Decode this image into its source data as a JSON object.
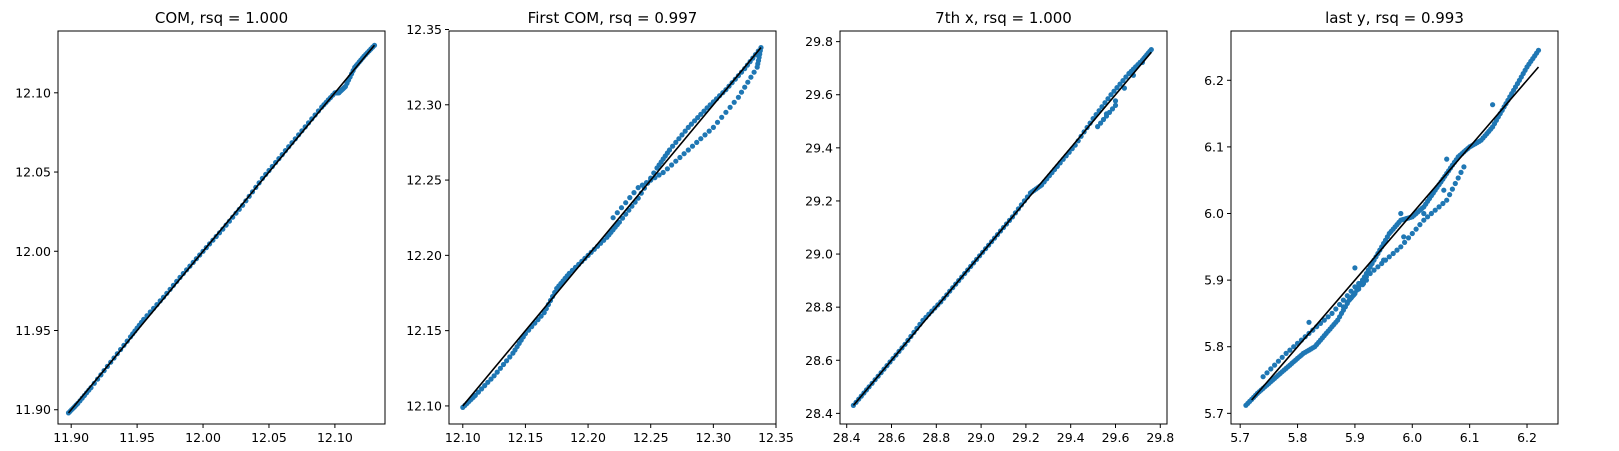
{
  "colors": {
    "points": "#1f77b4",
    "fit_line": "#000000",
    "axes": "#000000"
  },
  "chart_data": [
    {
      "type": "scatter",
      "title": "COM, rsq =  1.000",
      "xlim": [
        11.89,
        12.138
      ],
      "ylim": [
        11.891,
        12.139
      ],
      "xticks": [
        11.9,
        11.95,
        12.0,
        12.05,
        12.1
      ],
      "xtick_labels": [
        "11.90",
        "11.95",
        "12.00",
        "12.05",
        "12.10"
      ],
      "yticks": [
        11.9,
        11.95,
        12.0,
        12.05,
        12.1
      ],
      "ytick_labels": [
        "11.90",
        "11.95",
        "12.00",
        "12.05",
        "12.10"
      ],
      "fit_line": {
        "x": [
          11.898,
          12.13
        ],
        "y": [
          11.898,
          12.13
        ]
      },
      "points": {
        "x": [
          11.898,
          11.905,
          11.915,
          11.93,
          11.945,
          11.955,
          11.97,
          11.985,
          12.0,
          12.015,
          12.03,
          12.045,
          12.06,
          12.075,
          12.09,
          12.1,
          12.103,
          12.108,
          12.115,
          12.122,
          12.13
        ],
        "y": [
          11.898,
          11.904,
          11.914,
          11.93,
          11.946,
          11.957,
          11.971,
          11.986,
          12.0,
          12.014,
          12.029,
          12.046,
          12.061,
          12.076,
          12.091,
          12.1,
          12.1,
          12.104,
          12.116,
          12.123,
          12.13
        ]
      }
    },
    {
      "type": "scatter",
      "title": "First COM, rsq =  0.997",
      "xlim": [
        12.089,
        12.35
      ],
      "ylim": [
        12.088,
        12.349
      ],
      "xticks": [
        12.1,
        12.15,
        12.2,
        12.25,
        12.3,
        12.35
      ],
      "xtick_labels": [
        "12.10",
        "12.15",
        "12.20",
        "12.25",
        "12.30",
        "12.35"
      ],
      "yticks": [
        12.1,
        12.15,
        12.2,
        12.25,
        12.3,
        12.35
      ],
      "ytick_labels": [
        "12.10",
        "12.15",
        "12.20",
        "12.25",
        "12.30",
        "12.35"
      ],
      "fit_line": {
        "x": [
          12.1,
          12.338
        ],
        "y": [
          12.1,
          12.338
        ]
      },
      "points": {
        "x": [
          12.1,
          12.11,
          12.125,
          12.14,
          12.15,
          12.165,
          12.175,
          12.185,
          12.2,
          12.215,
          12.225,
          12.24,
          12.255,
          12.265,
          12.28,
          12.295,
          12.31,
          12.325,
          12.338,
          12.335,
          12.32,
          12.3,
          12.28,
          12.26,
          12.24,
          12.22
        ],
        "y": [
          12.099,
          12.107,
          12.12,
          12.135,
          12.148,
          12.162,
          12.178,
          12.188,
          12.2,
          12.212,
          12.222,
          12.238,
          12.258,
          12.27,
          12.285,
          12.298,
          12.31,
          12.324,
          12.338,
          12.325,
          12.305,
          12.285,
          12.27,
          12.255,
          12.245,
          12.225
        ]
      }
    },
    {
      "type": "scatter",
      "title": "7th x, rsq =  1.000",
      "xlim": [
        28.37,
        29.83
      ],
      "ylim": [
        28.36,
        29.84
      ],
      "xticks": [
        28.4,
        28.6,
        28.8,
        29.0,
        29.2,
        29.4,
        29.6,
        29.8
      ],
      "xtick_labels": [
        "28.4",
        "28.6",
        "28.8",
        "29.0",
        "29.2",
        "29.4",
        "29.6",
        "29.8"
      ],
      "yticks": [
        28.4,
        28.6,
        28.8,
        29.0,
        29.2,
        29.4,
        29.6,
        29.8
      ],
      "ytick_labels": [
        "28.4",
        "28.6",
        "28.8",
        "29.0",
        "29.2",
        "29.4",
        "29.6",
        "29.8"
      ],
      "fit_line": {
        "x": [
          28.43,
          29.76
        ],
        "y": [
          28.43,
          29.76
        ]
      },
      "points": {
        "x": [
          28.43,
          28.5,
          28.58,
          28.66,
          28.74,
          28.82,
          28.9,
          28.98,
          29.06,
          29.14,
          29.22,
          29.27,
          29.34,
          29.42,
          29.5,
          29.58,
          29.66,
          29.72,
          29.76,
          29.52,
          29.6
        ],
        "y": [
          28.43,
          28.5,
          28.58,
          28.66,
          28.75,
          28.82,
          28.9,
          28.98,
          29.06,
          29.14,
          29.23,
          29.26,
          29.33,
          29.41,
          29.51,
          29.6,
          29.68,
          29.73,
          29.77,
          29.48,
          29.56
        ]
      }
    },
    {
      "type": "scatter",
      "title": "last y, rsq =  0.993",
      "xlim": [
        5.684,
        6.254
      ],
      "ylim": [
        5.684,
        6.274
      ],
      "xticks": [
        5.7,
        5.8,
        5.9,
        6.0,
        6.1,
        6.2
      ],
      "xtick_labels": [
        "5.7",
        "5.8",
        "5.9",
        "6.0",
        "6.1",
        "6.2"
      ],
      "yticks": [
        5.7,
        5.8,
        5.9,
        6.0,
        6.1,
        6.2
      ],
      "ytick_labels": [
        "5.7",
        "5.8",
        "5.9",
        "6.0",
        "6.1",
        "6.2"
      ],
      "fit_line": {
        "x": [
          5.72,
          6.22
        ],
        "y": [
          5.72,
          6.22
        ]
      },
      "points": {
        "x": [
          5.71,
          5.73,
          5.75,
          5.77,
          5.79,
          5.81,
          5.83,
          5.85,
          5.87,
          5.89,
          5.9,
          5.92,
          5.94,
          5.96,
          5.98,
          6.0,
          6.02,
          6.04,
          6.06,
          6.08,
          6.1,
          6.12,
          6.14,
          6.16,
          6.18,
          6.2,
          6.22,
          5.74,
          5.78,
          5.82,
          5.86,
          5.9,
          5.94,
          5.98,
          6.02,
          6.06,
          6.09,
          5.88,
          5.92
        ],
        "y": [
          5.712,
          5.73,
          5.745,
          5.76,
          5.775,
          5.79,
          5.8,
          5.82,
          5.84,
          5.87,
          5.88,
          5.91,
          5.94,
          5.97,
          5.99,
          5.995,
          6.01,
          6.035,
          6.06,
          6.085,
          6.1,
          6.11,
          6.13,
          6.16,
          6.19,
          6.22,
          6.245,
          5.755,
          5.79,
          5.82,
          5.85,
          5.89,
          5.92,
          5.95,
          5.99,
          6.02,
          6.07,
          5.86,
          5.9
        ]
      }
    }
  ]
}
